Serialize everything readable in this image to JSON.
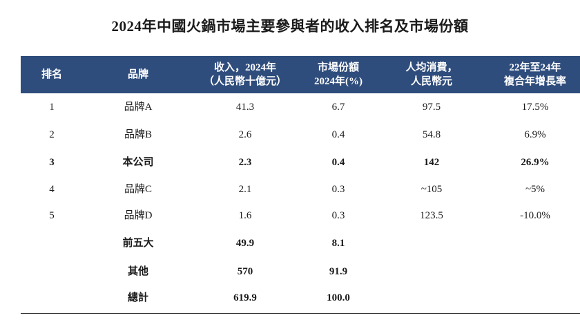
{
  "title": "2024年中國火鍋市場主要參與者的收入排名及市場份額",
  "headers": {
    "rank": "排名",
    "brand": "品牌",
    "revenue_1": "收入，2024年",
    "revenue_2": "（人民幣十億元）",
    "share_1": "市場份額",
    "share_2": "2024年(%)",
    "per_capita_1": "人均消費，",
    "per_capita_2": "人民幣元",
    "cagr_1": "22年至24年",
    "cagr_2": "複合年增長率"
  },
  "rows": [
    {
      "rank": "1",
      "brand": "品牌A",
      "revenue": "41.3",
      "share": "6.7",
      "per_capita": "97.5",
      "cagr": "17.5%"
    },
    {
      "rank": "2",
      "brand": "品牌B",
      "revenue": "2.6",
      "share": "0.4",
      "per_capita": "54.8",
      "cagr": "6.9%"
    },
    {
      "rank": "3",
      "brand": "本公司",
      "revenue": "2.3",
      "share": "0.4",
      "per_capita": "142",
      "cagr": "26.9%"
    },
    {
      "rank": "4",
      "brand": "品牌C",
      "revenue": "2.1",
      "share": "0.3",
      "per_capita": "~105",
      "cagr": "~5%"
    },
    {
      "rank": "5",
      "brand": "品牌D",
      "revenue": "1.6",
      "share": "0.3",
      "per_capita": "123.5",
      "cagr": "-10.0%"
    }
  ],
  "summary": [
    {
      "label": "前五大",
      "revenue": "49.9",
      "share": "8.1"
    },
    {
      "label": "其他",
      "revenue": "570",
      "share": "91.9"
    },
    {
      "label": "總計",
      "revenue": "619.9",
      "share": "100.0"
    }
  ]
}
